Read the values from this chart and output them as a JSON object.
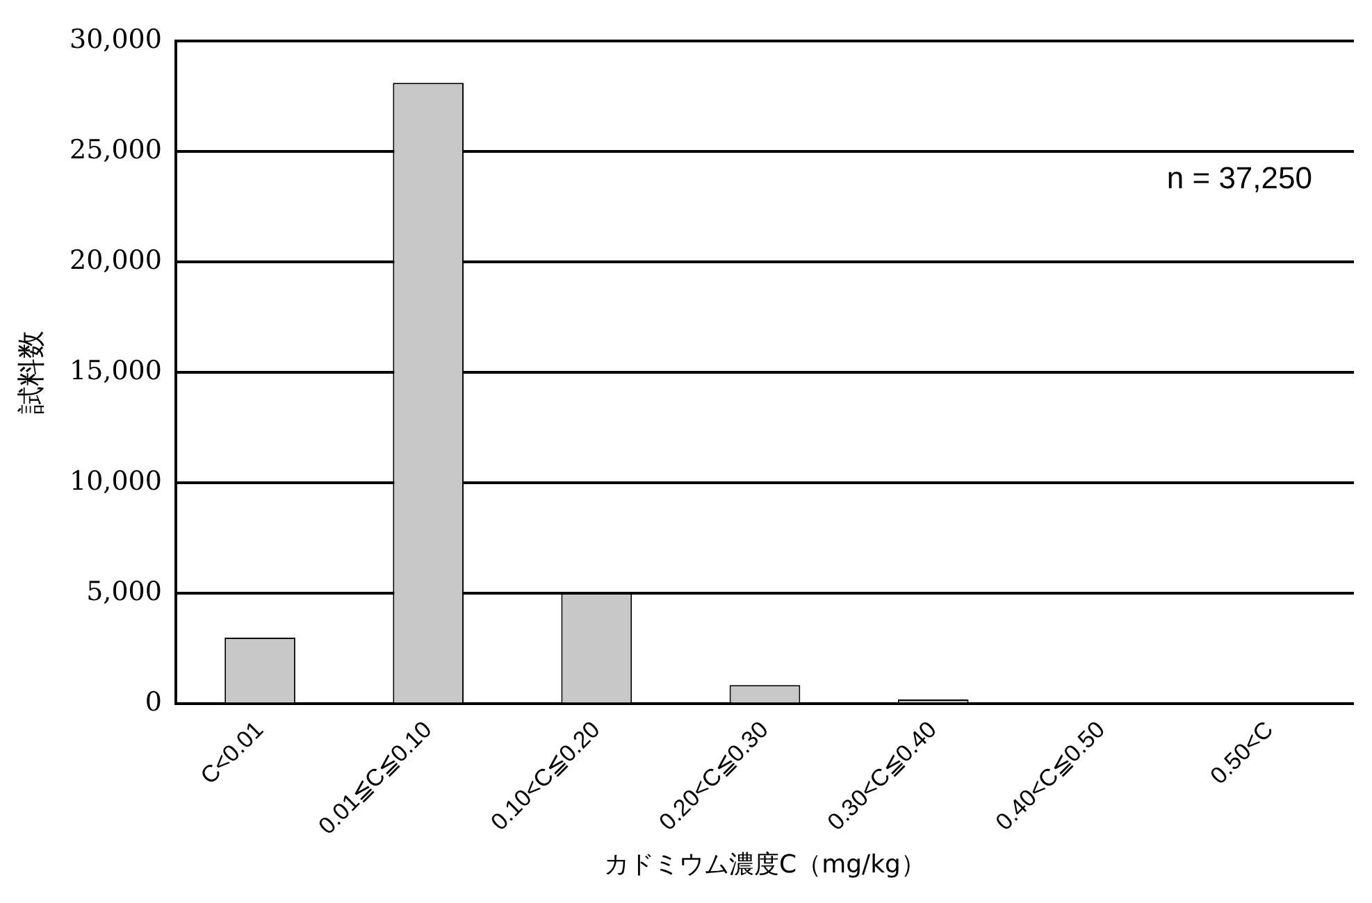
{
  "chart_data": {
    "type": "bar",
    "xlabel": "カドミウム濃度C（mg/kg）",
    "ylabel": "試料数",
    "categories": [
      "C<0.01",
      "0.01≦C≦0.10",
      "0.10<C≦0.20",
      "0.20<C≦0.30",
      "0.30<C≦0.40",
      "0.40<C≦0.50",
      "0.50<C"
    ],
    "values": [
      3000,
      28100,
      5000,
      850,
      200,
      0,
      0
    ],
    "color": "#c8c8c8",
    "ylim": [
      0,
      30000
    ],
    "yticks": [
      0,
      {
        "value": 5000,
        "label": "5,000"
      },
      {
        "value": 10000,
        "label": "10,000"
      },
      {
        "value": 15000,
        "label": "15,000"
      },
      {
        "value": 20000,
        "label": "20,000"
      },
      {
        "value": 25000,
        "label": "25,000"
      },
      {
        "value": 30000,
        "label": "30,000"
      }
    ],
    "grid": "y",
    "annotations": [
      "n = 37,250"
    ]
  }
}
